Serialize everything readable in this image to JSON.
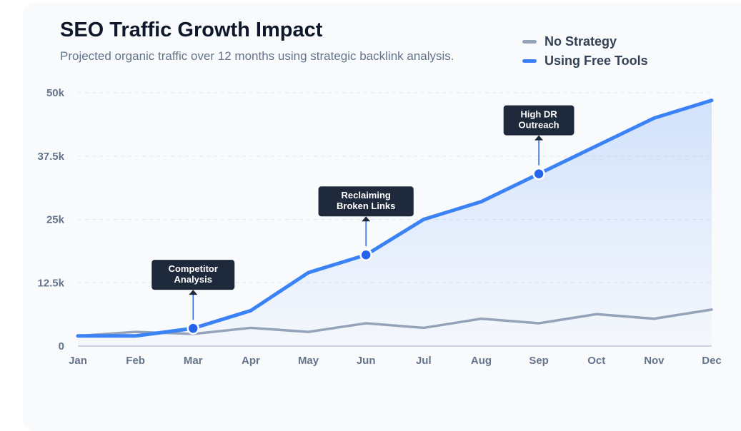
{
  "chart_data": {
    "type": "line",
    "title": "SEO Traffic Growth Impact",
    "subtitle": "Projected organic traffic over 12 months using strategic backlink analysis.",
    "categories": [
      "Jan",
      "Feb",
      "Mar",
      "Apr",
      "May",
      "Jun",
      "Jul",
      "Aug",
      "Sep",
      "Oct",
      "Nov",
      "Dec"
    ],
    "ylim": [
      0,
      50000
    ],
    "yticks": [
      0,
      12500,
      25000,
      37500,
      50000
    ],
    "ytick_labels": [
      "0",
      "12.5k",
      "25k",
      "37.5k",
      "50k"
    ],
    "grid": true,
    "legend_position": "top-right",
    "series": [
      {
        "name": "No Strategy",
        "color": "#94a3b8",
        "values": [
          2000,
          2800,
          2400,
          3600,
          2800,
          4500,
          3600,
          5400,
          4500,
          6300,
          5400,
          7200
        ]
      },
      {
        "name": "Using Free Tools",
        "color": "#3b82f6",
        "area": true,
        "values": [
          2000,
          2000,
          3500,
          7000,
          14500,
          18000,
          25000,
          28500,
          34000,
          39500,
          45000,
          48500
        ]
      }
    ],
    "annotations": [
      {
        "category": "Mar",
        "lines": [
          "Competitor",
          "Analysis"
        ]
      },
      {
        "category": "Jun",
        "lines": [
          "Reclaiming",
          "Broken Links"
        ]
      },
      {
        "category": "Sep",
        "lines": [
          "High DR",
          "Outreach"
        ]
      }
    ]
  }
}
